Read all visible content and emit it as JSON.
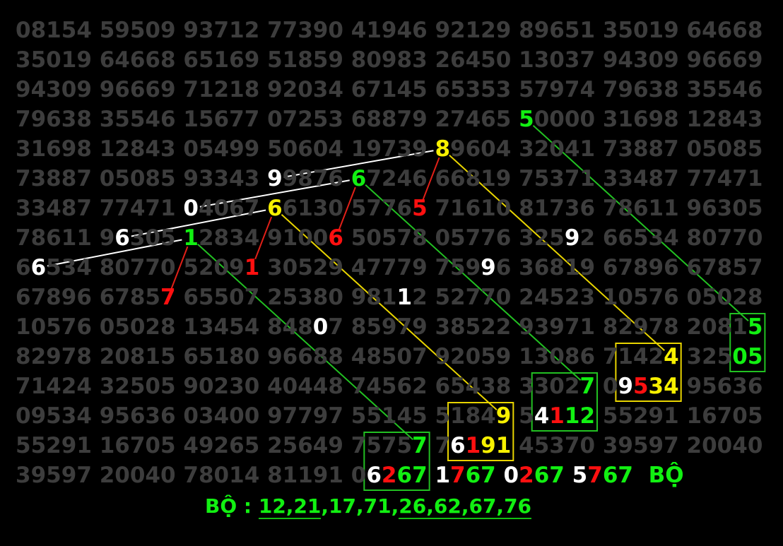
{
  "colors": {
    "background": "#000000",
    "grid_digit": "#3d3d3d",
    "white": "#ffffff",
    "green": "#12f012",
    "yellow": "#f7f000",
    "red": "#ff1010",
    "line_white": "#ffffff",
    "line_green": "#22c022",
    "line_yellow": "#e8d400",
    "line_red": "#e02018",
    "box_green": "#22c022",
    "box_yellow": "#e8d400"
  },
  "grid": {
    "rows": [
      [
        "08154",
        "59509",
        "93712",
        "77390",
        "41946",
        "92129",
        "89651",
        "35019",
        "64668"
      ],
      [
        "35019",
        "64668",
        "65169",
        "51859",
        "80983",
        "26450",
        "13037",
        "94309",
        "96669"
      ],
      [
        "94309",
        "96669",
        "71218",
        "92034",
        "67145",
        "65353",
        "57974",
        "79638",
        "35546"
      ],
      [
        "79638",
        "35546",
        "15677",
        "07253",
        "68879",
        "27465",
        "50000",
        "31698",
        "12843"
      ],
      [
        "31698",
        "12843",
        "05499",
        "50604",
        "19739",
        "89604",
        "32041",
        "73887",
        "05085"
      ],
      [
        "73887",
        "05085",
        "93343",
        "99876",
        "67246",
        "66819",
        "75371",
        "33487",
        "77471"
      ],
      [
        "33487",
        "77471",
        "04067",
        "66130",
        "57765",
        "71610",
        "81736",
        "78611",
        "96305"
      ],
      [
        "78611",
        "96305",
        "12834",
        "91006",
        "50578",
        "05776",
        "32592",
        "66534",
        "80770"
      ],
      [
        "66534",
        "80770",
        "52091",
        "30529",
        "47779",
        "75996",
        "36819",
        "67896",
        "67857"
      ],
      [
        "67896",
        "67857",
        "65507",
        "25380",
        "98112",
        "52770",
        "24523",
        "10576",
        "05028"
      ],
      [
        "10576",
        "05028",
        "13454",
        "84807",
        "85979",
        "38522",
        "93971",
        "82978",
        "20815"
      ],
      [
        "82978",
        "20815",
        "65180",
        "96688",
        "48507",
        "92059",
        "13086",
        "71424",
        "32505"
      ],
      [
        "71424",
        "32505",
        "90230",
        "40448",
        "74562",
        "65438",
        "33027",
        "09534",
        "95636"
      ],
      [
        "09534",
        "95636",
        "03400",
        "97797",
        "55145",
        "51849",
        "54112",
        "55291",
        "16705"
      ],
      [
        "55291",
        "16705",
        "49265",
        "25649",
        "75757",
        "76191",
        "45370",
        "39597",
        "20040"
      ],
      [
        "39597",
        "20040",
        "78014",
        "81191",
        "06267",
        "1767",
        "0267",
        "5767",
        " BỘ"
      ]
    ],
    "highlights": [
      {
        "id": "a5",
        "r": 3,
        "c": 6,
        "d": 0,
        "color": "green"
      },
      {
        "id": "a8",
        "r": 4,
        "c": 5,
        "d": 0,
        "color": "yellow"
      },
      {
        "id": "a9",
        "r": 5,
        "c": 3,
        "d": 0,
        "color": "white"
      },
      {
        "id": "b6",
        "r": 5,
        "c": 4,
        "d": 0,
        "color": "green"
      },
      {
        "id": "a0",
        "r": 6,
        "c": 2,
        "d": 0,
        "color": "white"
      },
      {
        "id": "y6",
        "r": 6,
        "c": 3,
        "d": 0,
        "color": "yellow"
      },
      {
        "id": "r5",
        "r": 6,
        "c": 4,
        "d": 4,
        "color": "red"
      },
      {
        "id": "w6",
        "r": 7,
        "c": 1,
        "d": 1,
        "color": "white"
      },
      {
        "id": "g1",
        "r": 7,
        "c": 2,
        "d": 0,
        "color": "green"
      },
      {
        "id": "r6",
        "r": 7,
        "c": 3,
        "d": 4,
        "color": "red"
      },
      {
        "id": "w9a",
        "r": 7,
        "c": 6,
        "d": 3,
        "color": "white"
      },
      {
        "id": "w6b",
        "r": 8,
        "c": 0,
        "d": 1,
        "color": "white"
      },
      {
        "id": "r1",
        "r": 8,
        "c": 2,
        "d": 4,
        "color": "red"
      },
      {
        "id": "w9b",
        "r": 8,
        "c": 5,
        "d": 3,
        "color": "white"
      },
      {
        "id": "r7",
        "r": 9,
        "c": 1,
        "d": 4,
        "color": "red"
      },
      {
        "id": "w1",
        "r": 9,
        "c": 4,
        "d": 3,
        "color": "white"
      },
      {
        "id": "w0",
        "r": 10,
        "c": 3,
        "d": 3,
        "color": "white"
      },
      {
        "id": "e5",
        "r": 10,
        "c": 8,
        "d": 4,
        "color": "green"
      },
      {
        "id": "y4",
        "r": 11,
        "c": 7,
        "d": 4,
        "color": "yellow"
      },
      {
        "id": "e0",
        "r": 11,
        "c": 8,
        "d": 3,
        "color": "green"
      },
      {
        "id": "e5b",
        "r": 11,
        "c": 8,
        "d": 4,
        "color": "green"
      },
      {
        "id": "g7",
        "r": 12,
        "c": 6,
        "d": 4,
        "color": "green"
      },
      {
        "id": "h9",
        "r": 12,
        "c": 7,
        "d": 1,
        "color": "white"
      },
      {
        "id": "h5",
        "r": 12,
        "c": 7,
        "d": 2,
        "color": "red"
      },
      {
        "id": "h3",
        "r": 12,
        "c": 7,
        "d": 3,
        "color": "yellow"
      },
      {
        "id": "h4",
        "r": 12,
        "c": 7,
        "d": 4,
        "color": "yellow"
      },
      {
        "id": "y9",
        "r": 13,
        "c": 5,
        "d": 4,
        "color": "yellow"
      },
      {
        "id": "k4",
        "r": 13,
        "c": 6,
        "d": 1,
        "color": "white"
      },
      {
        "id": "k1",
        "r": 13,
        "c": 6,
        "d": 2,
        "color": "red"
      },
      {
        "id": "k1b",
        "r": 13,
        "c": 6,
        "d": 3,
        "color": "green"
      },
      {
        "id": "k2",
        "r": 13,
        "c": 6,
        "d": 4,
        "color": "green"
      },
      {
        "id": "m7",
        "r": 14,
        "c": 4,
        "d": 4,
        "color": "green"
      },
      {
        "id": "n6",
        "r": 14,
        "c": 5,
        "d": 1,
        "color": "white"
      },
      {
        "id": "n1",
        "r": 14,
        "c": 5,
        "d": 2,
        "color": "red"
      },
      {
        "id": "n9",
        "r": 14,
        "c": 5,
        "d": 3,
        "color": "yellow"
      },
      {
        "id": "n1b",
        "r": 14,
        "c": 5,
        "d": 4,
        "color": "yellow"
      },
      {
        "id": "p6",
        "r": 15,
        "c": 4,
        "d": 1,
        "color": "white"
      },
      {
        "id": "p2",
        "r": 15,
        "c": 4,
        "d": 2,
        "color": "red"
      },
      {
        "id": "p6b",
        "r": 15,
        "c": 4,
        "d": 3,
        "color": "green"
      },
      {
        "id": "p7",
        "r": 15,
        "c": 4,
        "d": 4,
        "color": "green"
      },
      {
        "id": "q1",
        "r": 15,
        "c": 5,
        "d": 0,
        "color": "white"
      },
      {
        "id": "q7",
        "r": 15,
        "c": 5,
        "d": 1,
        "color": "red"
      },
      {
        "id": "q6",
        "r": 15,
        "c": 5,
        "d": 2,
        "color": "green"
      },
      {
        "id": "q7b",
        "r": 15,
        "c": 5,
        "d": 3,
        "color": "green"
      },
      {
        "id": "s0",
        "r": 15,
        "c": 6,
        "d": 0,
        "color": "white"
      },
      {
        "id": "s2",
        "r": 15,
        "c": 6,
        "d": 1,
        "color": "red"
      },
      {
        "id": "s6",
        "r": 15,
        "c": 6,
        "d": 2,
        "color": "green"
      },
      {
        "id": "s7",
        "r": 15,
        "c": 6,
        "d": 3,
        "color": "green"
      },
      {
        "id": "t5",
        "r": 15,
        "c": 7,
        "d": 0,
        "color": "white"
      },
      {
        "id": "t7",
        "r": 15,
        "c": 7,
        "d": 1,
        "color": "red"
      },
      {
        "id": "t6",
        "r": 15,
        "c": 7,
        "d": 2,
        "color": "green"
      },
      {
        "id": "t7b",
        "r": 15,
        "c": 7,
        "d": 3,
        "color": "green"
      },
      {
        "id": "bo",
        "r": 15,
        "c": 8,
        "d": 1,
        "color": "green"
      },
      {
        "id": "bo2",
        "r": 15,
        "c": 8,
        "d": 2,
        "color": "green"
      }
    ],
    "lines": [
      {
        "from": "w6b",
        "to": "g1",
        "color": "white"
      },
      {
        "from": "w6",
        "to": "y6",
        "color": "white"
      },
      {
        "from": "a0",
        "to": "b6",
        "color": "white"
      },
      {
        "from": "a9",
        "to": "a8",
        "color": "white"
      },
      {
        "from": "r7",
        "to": "g1",
        "color": "red"
      },
      {
        "from": "r1",
        "to": "y6",
        "color": "red"
      },
      {
        "from": "r6",
        "to": "b6",
        "color": "red"
      },
      {
        "from": "r5",
        "to": "a8",
        "color": "red"
      },
      {
        "from": "g1",
        "to": "m7",
        "color": "green"
      },
      {
        "from": "b6",
        "to": "g7",
        "color": "green"
      },
      {
        "from": "a5",
        "to": "e5",
        "color": "green"
      },
      {
        "from": "y6",
        "to": "y9",
        "color": "yellow"
      },
      {
        "from": "a8",
        "to": "y4",
        "color": "yellow"
      }
    ],
    "boxes": [
      {
        "cells": [
          [
            14,
            4,
            4
          ],
          [
            15,
            4,
            1
          ],
          [
            15,
            4,
            4
          ]
        ],
        "color": "green"
      },
      {
        "cells": [
          [
            13,
            5,
            1
          ],
          [
            13,
            5,
            4
          ],
          [
            14,
            5,
            1
          ],
          [
            14,
            5,
            4
          ]
        ],
        "color": "yellow"
      },
      {
        "cells": [
          [
            12,
            6,
            1
          ],
          [
            12,
            6,
            4
          ],
          [
            13,
            6,
            1
          ],
          [
            13,
            6,
            4
          ]
        ],
        "color": "green"
      },
      {
        "cells": [
          [
            11,
            7,
            1
          ],
          [
            11,
            7,
            4
          ],
          [
            12,
            7,
            1
          ],
          [
            12,
            7,
            4
          ]
        ],
        "color": "yellow"
      },
      {
        "cells": [
          [
            10,
            8,
            3
          ],
          [
            10,
            8,
            4
          ],
          [
            11,
            8,
            3
          ],
          [
            11,
            8,
            4
          ]
        ],
        "color": "green"
      }
    ]
  },
  "bottom": {
    "label": "BỘ : ",
    "part1": "12,21",
    "part2": ",17,71,",
    "part3": "26,62,67,76"
  }
}
